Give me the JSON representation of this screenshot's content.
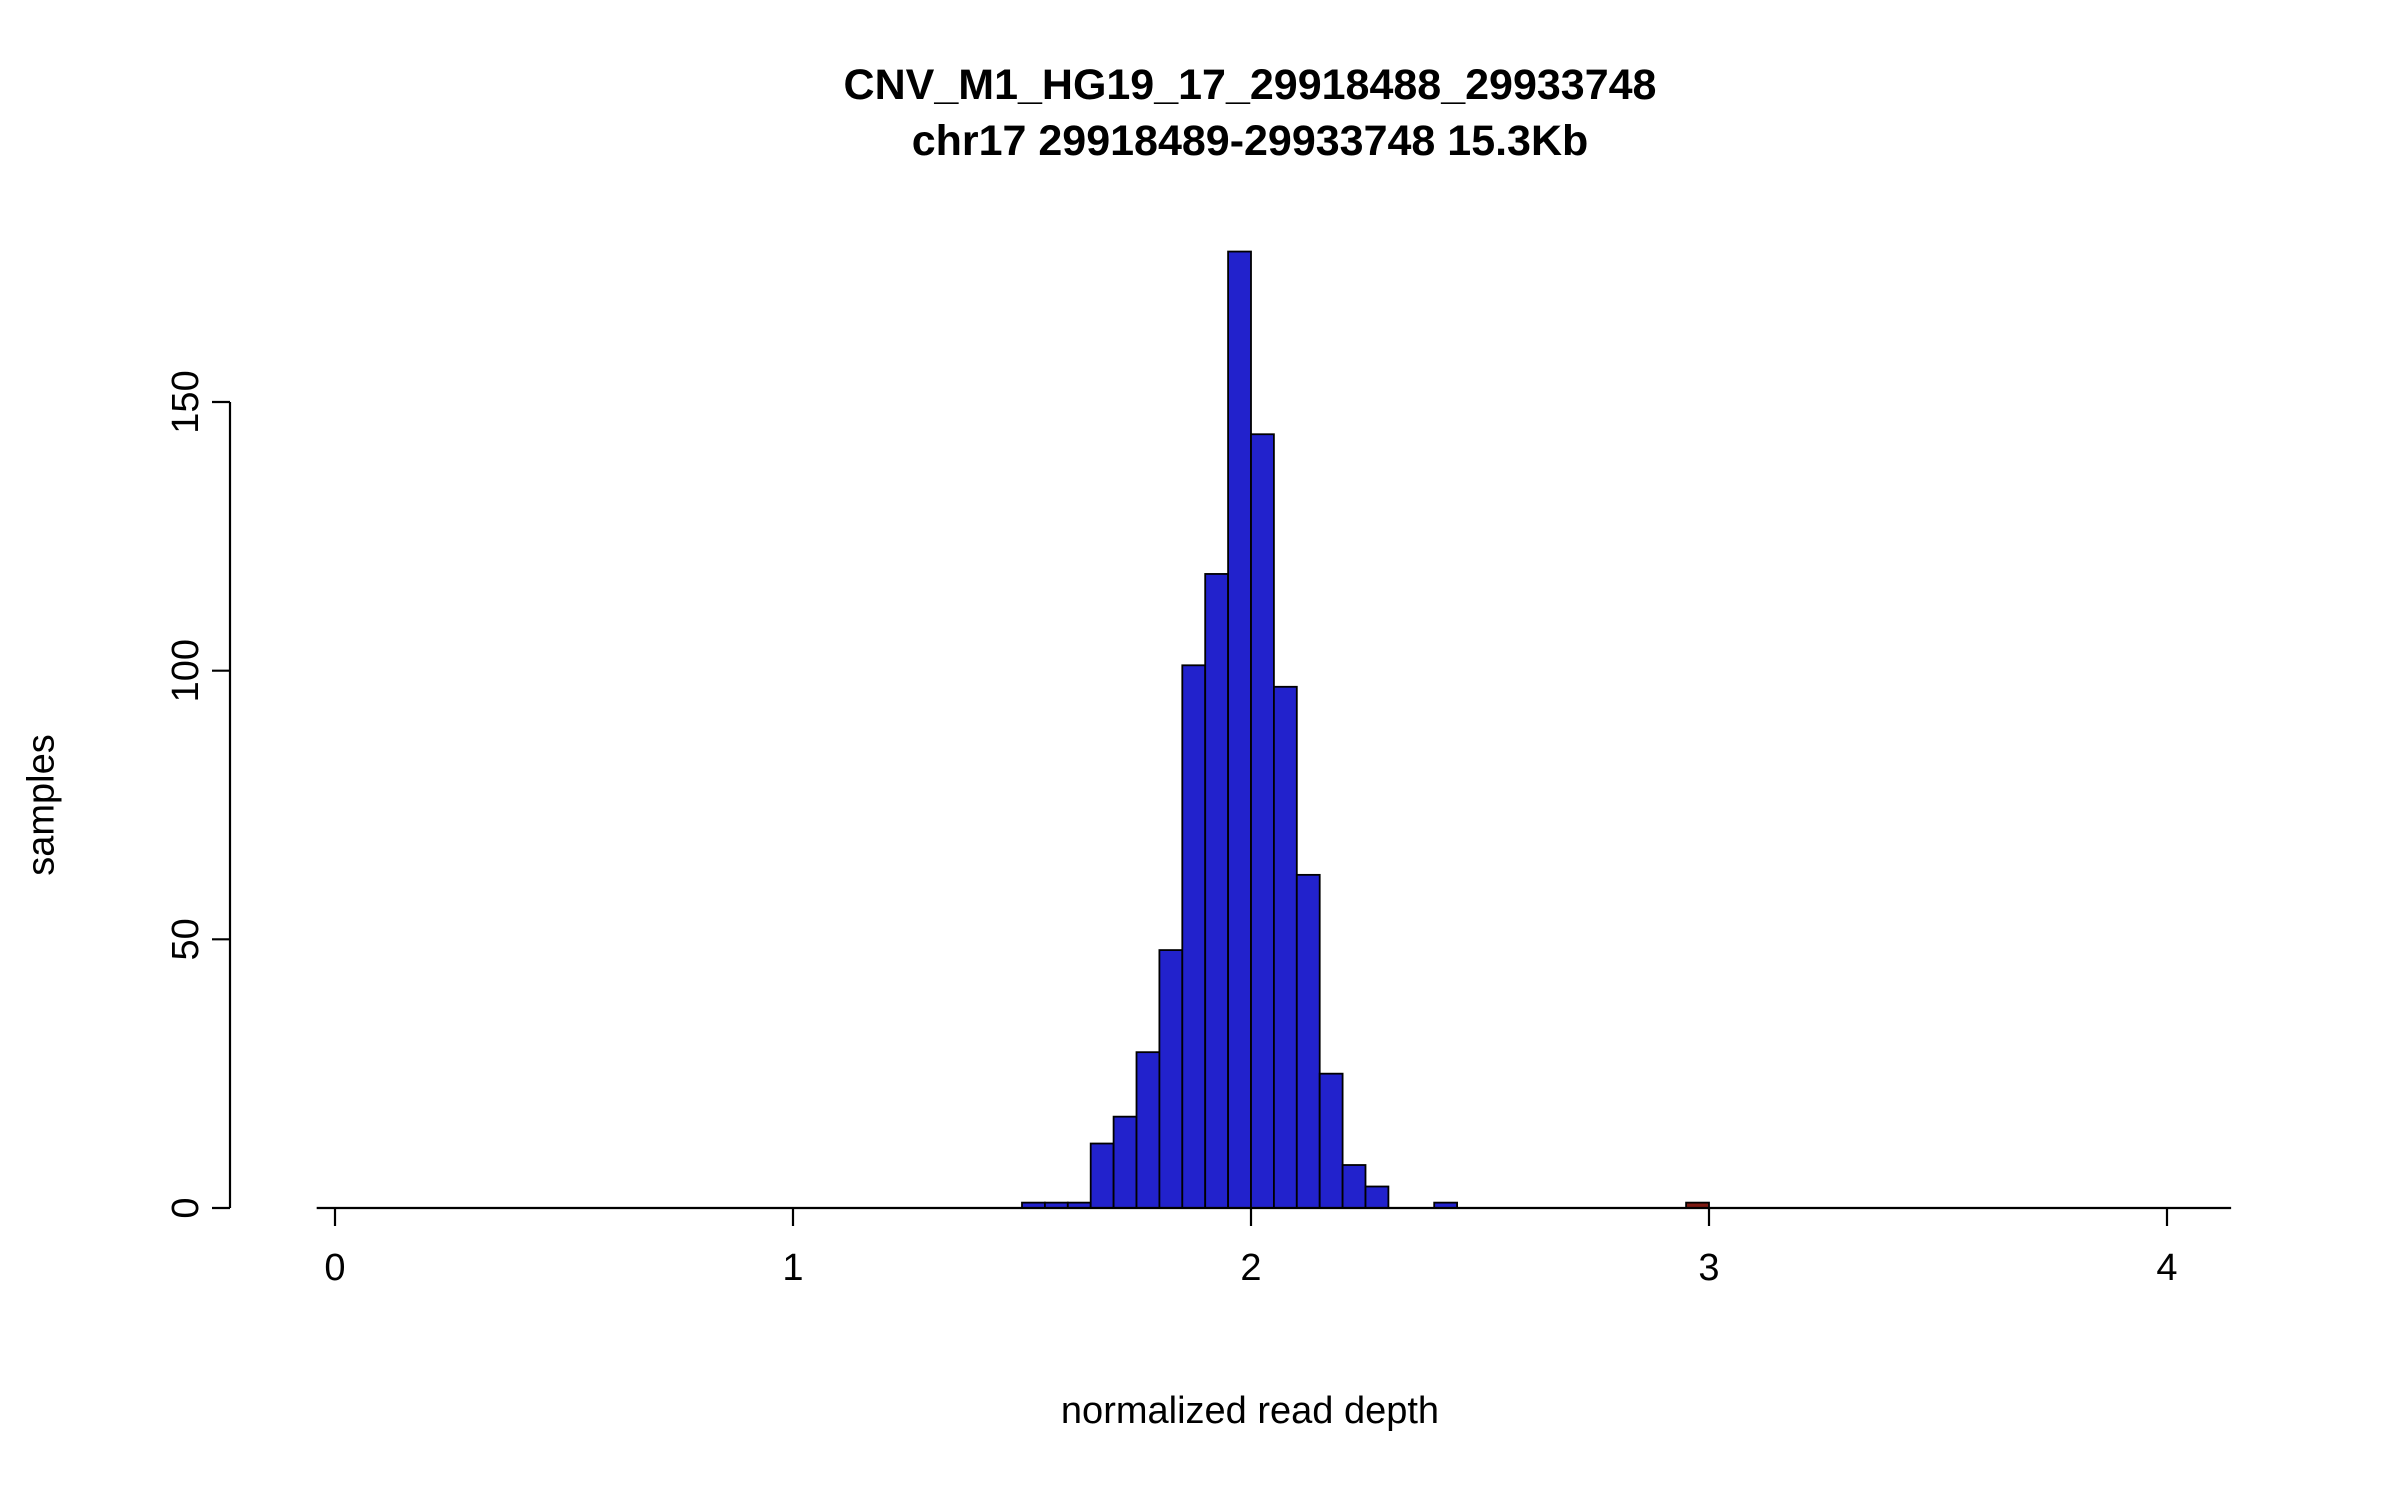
{
  "chart_data": {
    "type": "bar",
    "title": "CNV_M1_HG19_17_29918488_29933748",
    "subtitle": "chr17 29918489-29933748 15.3Kb",
    "xlabel": "normalized read depth",
    "ylabel": "samples",
    "x_ticks": [
      0,
      1,
      2,
      3,
      4
    ],
    "y_ticks": [
      0,
      50,
      100,
      150
    ],
    "xlim": [
      -0.04,
      4.14
    ],
    "ylim": [
      0,
      178
    ],
    "grid": false,
    "legend": "none",
    "bin_width": 0.05,
    "bar_stroke": "#000000",
    "bar_colors": {
      "blue": "#2222cc",
      "darkred": "#7d1a12"
    },
    "bars": [
      {
        "x": 1.5,
        "count": 1,
        "color": "blue"
      },
      {
        "x": 1.55,
        "count": 1,
        "color": "blue"
      },
      {
        "x": 1.6,
        "count": 1,
        "color": "blue"
      },
      {
        "x": 1.65,
        "count": 12,
        "color": "blue"
      },
      {
        "x": 1.7,
        "count": 17,
        "color": "blue"
      },
      {
        "x": 1.75,
        "count": 29,
        "color": "blue"
      },
      {
        "x": 1.8,
        "count": 48,
        "color": "blue"
      },
      {
        "x": 1.85,
        "count": 101,
        "color": "blue"
      },
      {
        "x": 1.9,
        "count": 118,
        "color": "blue"
      },
      {
        "x": 1.95,
        "count": 178,
        "color": "blue"
      },
      {
        "x": 2.0,
        "count": 144,
        "color": "blue"
      },
      {
        "x": 2.05,
        "count": 97,
        "color": "blue"
      },
      {
        "x": 2.1,
        "count": 62,
        "color": "blue"
      },
      {
        "x": 2.15,
        "count": 25,
        "color": "blue"
      },
      {
        "x": 2.2,
        "count": 8,
        "color": "blue"
      },
      {
        "x": 2.25,
        "count": 4,
        "color": "blue"
      },
      {
        "x": 2.4,
        "count": 1,
        "color": "blue"
      },
      {
        "x": 2.95,
        "count": 1,
        "color": "darkred"
      }
    ]
  }
}
